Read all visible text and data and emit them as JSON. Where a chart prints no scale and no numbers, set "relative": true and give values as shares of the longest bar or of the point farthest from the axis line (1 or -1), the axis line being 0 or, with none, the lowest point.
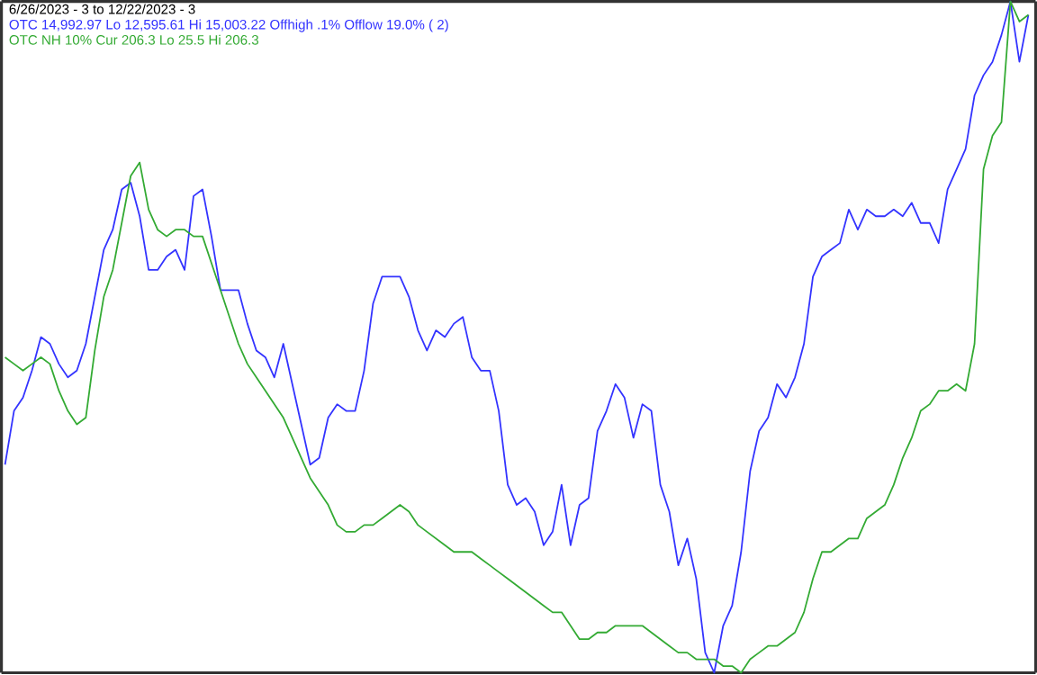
{
  "chart_data": {
    "type": "line",
    "title": "6/26/2023 - 3 to 12/22/2023 - 3",
    "relative": true,
    "marker": "none",
    "line_style": "solid",
    "categories": [
      null,
      null,
      null,
      null,
      null,
      null,
      null,
      null,
      null,
      null,
      null,
      null,
      null,
      null,
      null,
      null,
      null,
      null,
      null,
      null,
      null,
      null,
      null,
      null,
      null,
      null,
      null,
      null,
      null,
      null,
      null,
      null,
      null,
      null,
      null,
      null,
      null,
      null,
      null,
      null,
      null,
      null,
      null,
      null,
      null,
      null,
      null,
      null,
      null,
      null,
      null,
      null,
      null,
      null,
      null,
      null,
      null,
      null,
      null,
      null,
      null,
      null,
      null,
      null,
      null,
      null,
      null,
      null,
      null,
      null,
      null,
      null,
      null,
      null,
      null,
      null,
      null,
      null,
      null,
      null,
      null,
      null,
      null,
      null,
      null,
      null,
      null,
      null,
      null,
      null,
      null,
      null,
      null,
      null,
      null,
      null,
      null,
      null,
      null,
      null,
      null,
      null,
      null,
      null,
      null,
      null,
      null,
      null,
      null,
      null,
      null,
      null,
      null,
      null,
      null
    ],
    "series": [
      {
        "name": "OTC 14,992.97 Lo 12,595.61 Hi 15,003.22  Offhigh .1%  Offlow 19.0% ( 2)",
        "color": "#3333ff",
        "values": [
          0.31,
          0.39,
          0.41,
          0.45,
          0.5,
          0.49,
          0.46,
          0.44,
          0.45,
          0.49,
          0.56,
          0.63,
          0.66,
          0.72,
          0.73,
          0.68,
          0.6,
          0.6,
          0.62,
          0.63,
          0.6,
          0.71,
          0.72,
          0.65,
          0.57,
          0.57,
          0.57,
          0.52,
          0.48,
          0.47,
          0.44,
          0.49,
          0.43,
          0.37,
          0.31,
          0.32,
          0.38,
          0.4,
          0.39,
          0.39,
          0.45,
          0.55,
          0.59,
          0.59,
          0.59,
          0.56,
          0.51,
          0.48,
          0.51,
          0.5,
          0.52,
          0.53,
          0.47,
          0.45,
          0.45,
          0.39,
          0.28,
          0.25,
          0.26,
          0.24,
          0.19,
          0.21,
          0.28,
          0.19,
          0.25,
          0.26,
          0.36,
          0.39,
          0.43,
          0.41,
          0.35,
          0.4,
          0.39,
          0.28,
          0.24,
          0.16,
          0.2,
          0.14,
          0.03,
          0,
          0.07,
          0.1,
          0.18,
          0.3,
          0.36,
          0.38,
          0.43,
          0.41,
          0.44,
          0.49,
          0.59,
          0.62,
          0.63,
          0.64,
          0.69,
          0.66,
          0.69,
          0.68,
          0.68,
          0.69,
          0.68,
          0.7,
          0.67,
          0.67,
          0.64,
          0.72,
          0.75,
          0.78,
          0.86,
          0.89,
          0.91,
          0.95,
          1,
          0.91,
          0.98
        ]
      },
      {
        "name": "OTC NH 10% Cur 206.3 Lo 25.5 Hi 206.3",
        "color": "#33aa33",
        "values": [
          0.47,
          0.46,
          0.45,
          0.46,
          0.47,
          0.46,
          0.42,
          0.39,
          0.37,
          0.38,
          0.48,
          0.56,
          0.6,
          0.67,
          0.74,
          0.76,
          0.69,
          0.66,
          0.65,
          0.66,
          0.66,
          0.65,
          0.65,
          0.61,
          0.57,
          0.53,
          0.49,
          0.46,
          0.44,
          0.42,
          0.4,
          0.38,
          0.35,
          0.32,
          0.29,
          0.27,
          0.25,
          0.22,
          0.21,
          0.21,
          0.22,
          0.22,
          0.23,
          0.24,
          0.25,
          0.24,
          0.22,
          0.21,
          0.2,
          0.19,
          0.18,
          0.18,
          0.18,
          0.17,
          0.16,
          0.15,
          0.14,
          0.13,
          0.12,
          0.11,
          0.1,
          0.09,
          0.09,
          0.07,
          0.05,
          0.05,
          0.06,
          0.06,
          0.07,
          0.07,
          0.07,
          0.07,
          0.06,
          0.05,
          0.04,
          0.03,
          0.03,
          0.02,
          0.02,
          0.02,
          0.01,
          0.01,
          0,
          0.02,
          0.03,
          0.04,
          0.04,
          0.05,
          0.06,
          0.09,
          0.14,
          0.18,
          0.18,
          0.19,
          0.2,
          0.2,
          0.23,
          0.24,
          0.25,
          0.28,
          0.32,
          0.35,
          0.39,
          0.4,
          0.42,
          0.42,
          0.43,
          0.42,
          0.49,
          0.75,
          0.8,
          0.82,
          1,
          0.97,
          0.98
        ]
      }
    ]
  }
}
